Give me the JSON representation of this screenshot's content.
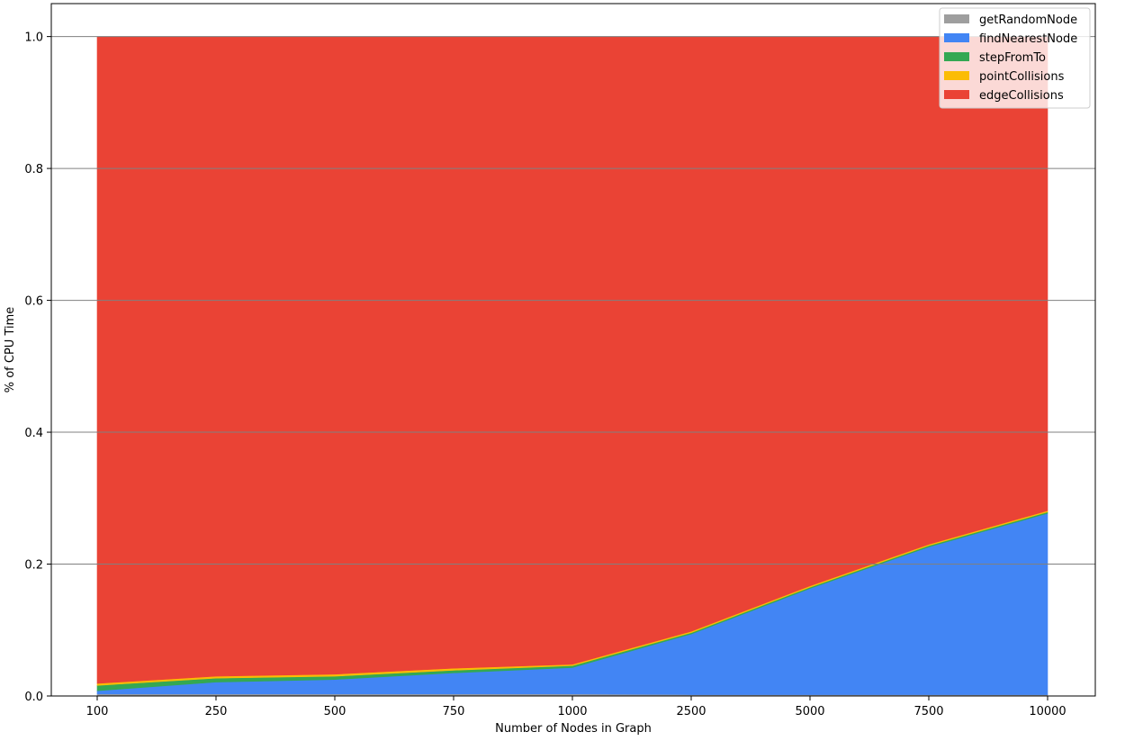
{
  "chart_data": {
    "type": "area",
    "stacked": true,
    "title": "",
    "xlabel": "Number of Nodes in Graph",
    "ylabel": "% of CPU Time",
    "x": [
      "100",
      "250",
      "500",
      "750",
      "1000",
      "2500",
      "5000",
      "7500",
      "10000"
    ],
    "ylim": [
      0,
      1.05
    ],
    "yticks": [
      "0.0",
      "0.2",
      "0.4",
      "0.6",
      "0.8",
      "1.0"
    ],
    "grid": "horizontal",
    "legend_position": "top-right",
    "series": [
      {
        "name": "getRandomNode",
        "color": "#9e9e9e",
        "values": [
          0.003,
          0.003,
          0.003,
          0.003,
          0.003,
          0.002,
          0.002,
          0.002,
          0.002
        ]
      },
      {
        "name": "findNearestNode",
        "color": "#4285f4",
        "values": [
          0.005,
          0.018,
          0.022,
          0.032,
          0.04,
          0.092,
          0.161,
          0.224,
          0.275
        ]
      },
      {
        "name": "stepFromTo",
        "color": "#34a853",
        "values": [
          0.008,
          0.006,
          0.005,
          0.004,
          0.003,
          0.002,
          0.002,
          0.002,
          0.002
        ]
      },
      {
        "name": "pointCollisions",
        "color": "#fbbc05",
        "values": [
          0.003,
          0.003,
          0.003,
          0.003,
          0.002,
          0.002,
          0.002,
          0.002,
          0.002
        ]
      },
      {
        "name": "edgeCollisions",
        "color": "#ea4335",
        "values": [
          0.981,
          0.97,
          0.967,
          0.958,
          0.952,
          0.902,
          0.833,
          0.77,
          0.719
        ]
      }
    ]
  }
}
